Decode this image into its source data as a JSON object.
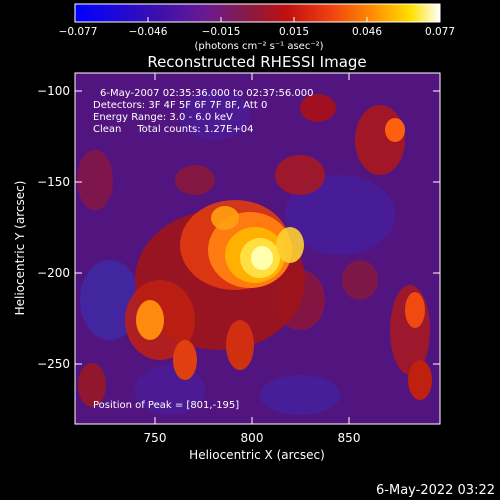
{
  "colorbar": {
    "ticks": [
      "−0.077",
      "−0.046",
      "−0.015",
      "0.015",
      "0.046",
      "0.077"
    ],
    "unit_label": "(photons cm⁻² s⁻¹ asec⁻²)",
    "range": [
      -0.077,
      0.077
    ]
  },
  "chart_data": {
    "type": "heatmap",
    "title": "Reconstructed RHESSI Image",
    "xlabel": "Heliocentric X (arcsec)",
    "ylabel": "Heliocentric Y (arcsec)",
    "xlim": [
      705,
      893
    ],
    "ylim": [
      -283,
      -90
    ],
    "x_ticks": [
      750,
      800,
      850
    ],
    "x_tick_labels": [
      "750",
      "800",
      "850"
    ],
    "y_ticks": [
      -100,
      -150,
      -200,
      -250
    ],
    "y_tick_labels": [
      "−100",
      "−150",
      "−200",
      "−250"
    ],
    "colormap": [
      "#0000ff",
      "#4a0a8a",
      "#6a2a9a",
      "#7a1a50",
      "#b01010",
      "#e03010",
      "#ff7a00",
      "#ffd000",
      "#ffff80",
      "#ffffff"
    ],
    "peak": [
      801,
      -195
    ],
    "annotations": [
      "6-May-2007 02:35:36.000 to 02:37:56.000",
      "Detectors: 3F 4F 5F 6F 7F 8F, Att 0",
      "Energy Range: 3.0 - 6.0 keV",
      "Clean     Total counts: 1.27E+04"
    ],
    "peak_label": "Position of Peak = [801,-195]"
  },
  "footer": {
    "timestamp": "6-May-2022 03:22"
  }
}
